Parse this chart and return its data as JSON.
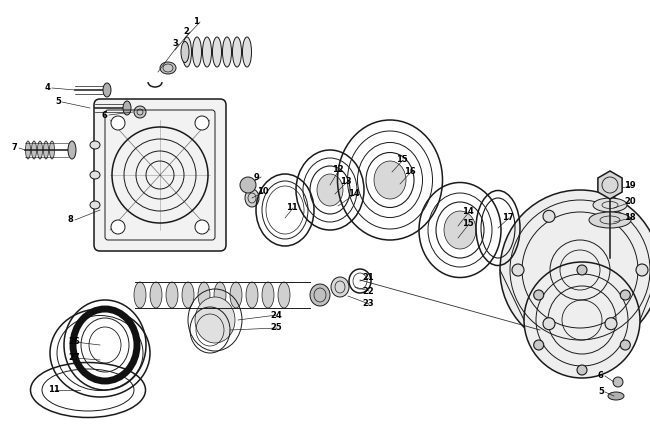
{
  "bg_color": "#ffffff",
  "line_color": "#1a1a1a",
  "label_color": "#000000",
  "fig_width": 6.5,
  "fig_height": 4.24,
  "dpi": 100
}
